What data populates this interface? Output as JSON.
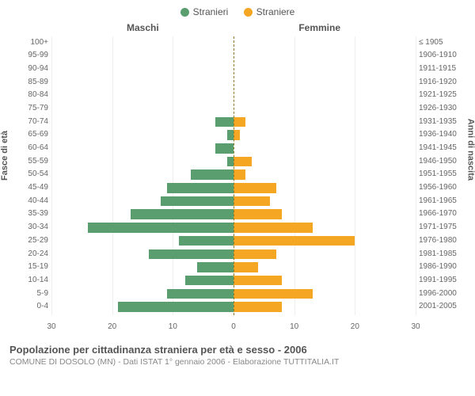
{
  "chart": {
    "type": "population-pyramid",
    "legend": {
      "male": {
        "label": "Stranieri",
        "color": "#5a9e6f"
      },
      "female": {
        "label": "Straniere",
        "color": "#f5a623"
      }
    },
    "side_titles": {
      "male": "Maschi",
      "female": "Femmine"
    },
    "y_axis_left": "Fasce di età",
    "y_axis_right": "Anni di nascita",
    "x_max": 30,
    "x_ticks": [
      30,
      20,
      10,
      0,
      10,
      20,
      30
    ],
    "grid_positions": [
      -30,
      -20,
      -10,
      10,
      20,
      30
    ],
    "background_color": "#ffffff",
    "grid_color": "#eeeeee",
    "center_line_color": "#8a7a2a",
    "rows": [
      {
        "age": "100+",
        "birth": "≤ 1905",
        "m": 0,
        "f": 0
      },
      {
        "age": "95-99",
        "birth": "1906-1910",
        "m": 0,
        "f": 0
      },
      {
        "age": "90-94",
        "birth": "1911-1915",
        "m": 0,
        "f": 0
      },
      {
        "age": "85-89",
        "birth": "1916-1920",
        "m": 0,
        "f": 0
      },
      {
        "age": "80-84",
        "birth": "1921-1925",
        "m": 0,
        "f": 0
      },
      {
        "age": "75-79",
        "birth": "1926-1930",
        "m": 0,
        "f": 0
      },
      {
        "age": "70-74",
        "birth": "1931-1935",
        "m": 3,
        "f": 2
      },
      {
        "age": "65-69",
        "birth": "1936-1940",
        "m": 1,
        "f": 1
      },
      {
        "age": "60-64",
        "birth": "1941-1945",
        "m": 3,
        "f": 0
      },
      {
        "age": "55-59",
        "birth": "1946-1950",
        "m": 1,
        "f": 3
      },
      {
        "age": "50-54",
        "birth": "1951-1955",
        "m": 7,
        "f": 2
      },
      {
        "age": "45-49",
        "birth": "1956-1960",
        "m": 11,
        "f": 7
      },
      {
        "age": "40-44",
        "birth": "1961-1965",
        "m": 12,
        "f": 6
      },
      {
        "age": "35-39",
        "birth": "1966-1970",
        "m": 17,
        "f": 8
      },
      {
        "age": "30-34",
        "birth": "1971-1975",
        "m": 24,
        "f": 13
      },
      {
        "age": "25-29",
        "birth": "1976-1980",
        "m": 9,
        "f": 20
      },
      {
        "age": "20-24",
        "birth": "1981-1985",
        "m": 14,
        "f": 7
      },
      {
        "age": "15-19",
        "birth": "1986-1990",
        "m": 6,
        "f": 4
      },
      {
        "age": "10-14",
        "birth": "1991-1995",
        "m": 8,
        "f": 8
      },
      {
        "age": "5-9",
        "birth": "1996-2000",
        "m": 11,
        "f": 13
      },
      {
        "age": "0-4",
        "birth": "2001-2005",
        "m": 19,
        "f": 8
      }
    ],
    "caption_title": "Popolazione per cittadinanza straniera per età e sesso - 2006",
    "caption_sub": "COMUNE DI DOSOLO (MN) - Dati ISTAT 1° gennaio 2006 - Elaborazione TUTTITALIA.IT"
  }
}
